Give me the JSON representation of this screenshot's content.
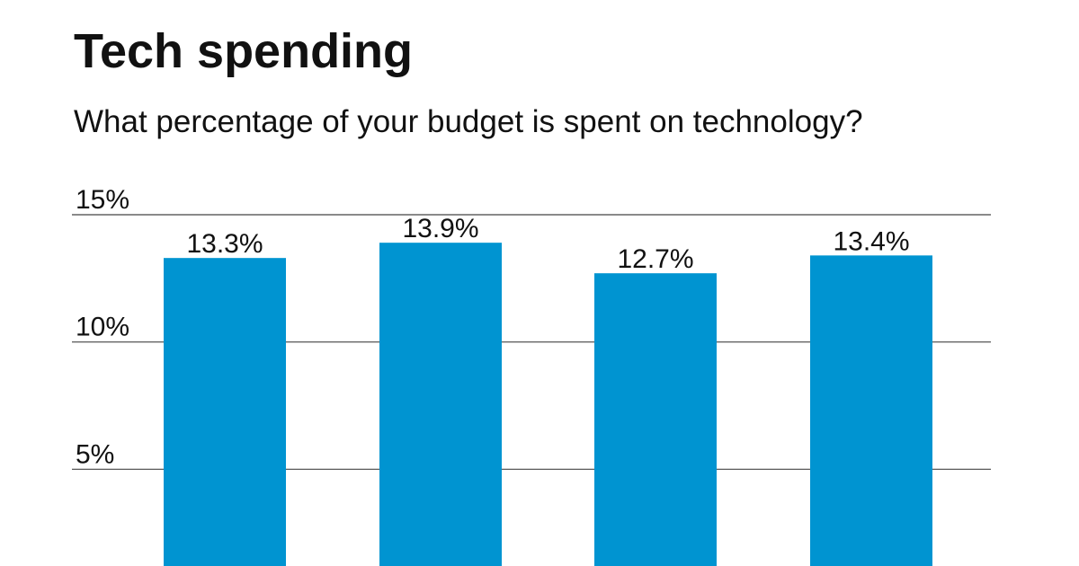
{
  "title": "Tech spending",
  "subtitle": "What percentage of your budget is spent on technology?",
  "colors": {
    "bar": "#0094d1",
    "gridline": "#444444",
    "text": "#111111"
  },
  "chart_data": {
    "type": "bar",
    "title": "Tech spending",
    "subtitle": "What percentage of your budget is spent on technology?",
    "categories": [
      "",
      "",
      "",
      ""
    ],
    "values": [
      13.3,
      13.9,
      12.7,
      13.4
    ],
    "value_labels": [
      "13.3%",
      "13.9%",
      "12.7%",
      "13.4%"
    ],
    "yticks": [
      5,
      10,
      15
    ],
    "ytick_labels": [
      "5%",
      "10%",
      "15%"
    ],
    "ylim": [
      1.2,
      15
    ],
    "grid": true,
    "legend": "none",
    "xlabel": "",
    "ylabel": ""
  }
}
